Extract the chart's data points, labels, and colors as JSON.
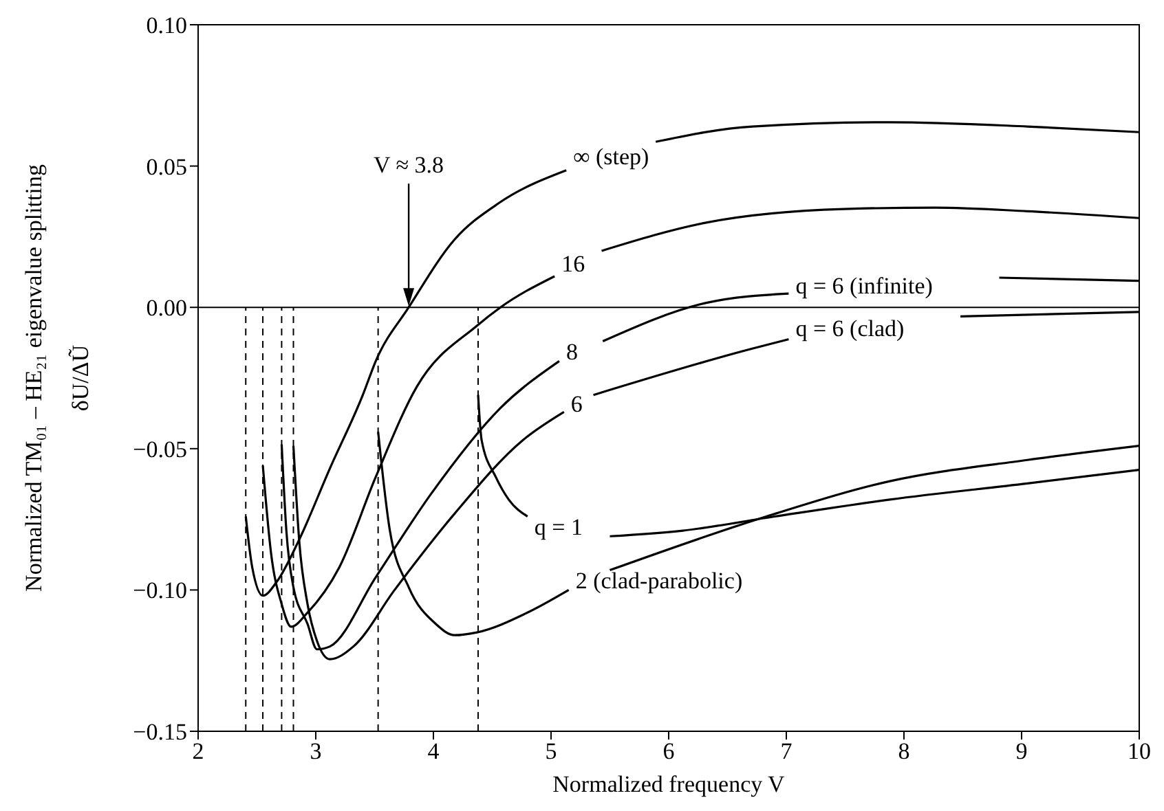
{
  "chart_data": {
    "type": "line",
    "xlabel": "Normalized frequency V",
    "ylabel": "Normalized  TM₀₁ – HE₂₁ eigenvalue splitting\nδU/ΔŨ",
    "xlim": [
      2,
      10
    ],
    "xticks": [
      2,
      3,
      4,
      5,
      6,
      7,
      8,
      9,
      10
    ],
    "ylim": [
      -0.15,
      0.1
    ],
    "yticks": [
      {
        "value": 0.1,
        "label": "0.10"
      },
      {
        "value": 0.05,
        "label": "0.05"
      },
      {
        "value": 0,
        "label": "0.00"
      },
      {
        "value": -0.05,
        "label": "−0.05"
      },
      {
        "value": -0.1,
        "label": "−0.10"
      },
      {
        "value": -0.15,
        "label": "−0.15"
      }
    ],
    "series": [
      {
        "name": "∞ (step)",
        "color": "#000000",
        "x": [
          2.405,
          2.46,
          2.55,
          2.67,
          2.85,
          3.12,
          3.4,
          3.51,
          3.79,
          4.18,
          4.56,
          5.13,
          5.5,
          5.89,
          6.71,
          7.88,
          9.05,
          10
        ],
        "values": [
          -0.074,
          -0.092,
          -0.102,
          -0.097,
          -0.083,
          -0.057,
          -0.031,
          -0.019,
          0,
          0.024,
          0.037,
          0.0485,
          null,
          0.0586,
          0.064,
          0.0655,
          0.064,
          0.062
        ]
      },
      {
        "name": "16",
        "color": "#000000",
        "x": [
          2.55,
          2.62,
          2.71,
          2.79,
          2.93,
          3.2,
          3.51,
          3.86,
          4.37,
          4.57,
          5.03,
          5.25,
          5.43,
          6.32,
          7.49,
          8.27,
          9.05,
          10
        ],
        "values": [
          -0.056,
          -0.087,
          -0.105,
          -0.113,
          -0.108,
          -0.092,
          -0.06,
          -0.028,
          -0.0065,
          0,
          0.011,
          null,
          0.02,
          0.03,
          0.0348,
          0.0353,
          0.034,
          0.0316
        ]
      },
      {
        "name": "8",
        "color": "#000000",
        "x": [
          2.71,
          2.75,
          2.81,
          2.93,
          3.01,
          3.12,
          3.51,
          3.98,
          4.57,
          5.07,
          5.25,
          5.44,
          6.32,
          7.02,
          7.9,
          8.81,
          10
        ],
        "values": [
          -0.0485,
          -0.079,
          -0.099,
          -0.112,
          -0.121,
          -0.12,
          -0.0955,
          -0.066,
          -0.0356,
          -0.019,
          null,
          -0.012,
          0.0016,
          0.0049,
          null,
          0.0105,
          0.0094
        ]
      },
      {
        "name": "6",
        "color": "#000000",
        "x": [
          2.81,
          2.86,
          2.93,
          3.01,
          3.12,
          3.32,
          3.67,
          4.18,
          4.76,
          5.11,
          5.25,
          5.36,
          6.71,
          7.02,
          7.75,
          8.48,
          10
        ],
        "values": [
          -0.049,
          -0.083,
          -0.105,
          -0.118,
          -0.1245,
          -0.12,
          -0.1,
          -0.073,
          -0.047,
          -0.037,
          null,
          -0.031,
          -0.0146,
          -0.0113,
          null,
          -0.0032,
          -0.0016
        ]
      },
      {
        "name": "q = 1",
        "color": "#000000",
        "x": [
          4.38,
          4.41,
          4.53,
          4.64,
          4.8,
          5.15,
          5.5,
          6.12,
          6.9,
          7.88,
          9.05,
          10
        ],
        "values": [
          -0.031,
          -0.047,
          -0.06,
          -0.068,
          -0.074,
          null,
          -0.081,
          -0.079,
          -0.074,
          -0.068,
          -0.0623,
          -0.0575
        ]
      },
      {
        "name": "2 (clad-parabolic)",
        "color": "#000000",
        "x": [
          3.53,
          3.63,
          3.79,
          4.02,
          4.18,
          4.37,
          4.8,
          5.15,
          5.3,
          5.5,
          6.83,
          7.88,
          9.05,
          10
        ],
        "values": [
          -0.044,
          -0.079,
          -0.099,
          -0.112,
          -0.116,
          -0.115,
          -0.108,
          -0.1,
          null,
          -0.093,
          -0.074,
          -0.0615,
          -0.054,
          -0.049
        ]
      }
    ],
    "ref_lines": [
      {
        "axis": "y",
        "value": 0,
        "color": "#000000",
        "line_style": "solid"
      },
      {
        "axis": "x",
        "value": 2.405,
        "color": "#000000",
        "line_style": "dashed"
      },
      {
        "axis": "x",
        "value": 2.55,
        "color": "#000000",
        "line_style": "dashed"
      },
      {
        "axis": "x",
        "value": 2.71,
        "color": "#000000",
        "line_style": "dashed"
      },
      {
        "axis": "x",
        "value": 2.81,
        "color": "#000000",
        "line_style": "dashed"
      },
      {
        "axis": "x",
        "value": 3.53,
        "color": "#000000",
        "line_style": "dashed"
      },
      {
        "axis": "x",
        "value": 4.38,
        "color": "#000000",
        "line_style": "dashed"
      }
    ],
    "annotations": [
      "V ≈ 3.8",
      "q = 6 (infinite)",
      "q = 6 (clad)"
    ]
  }
}
